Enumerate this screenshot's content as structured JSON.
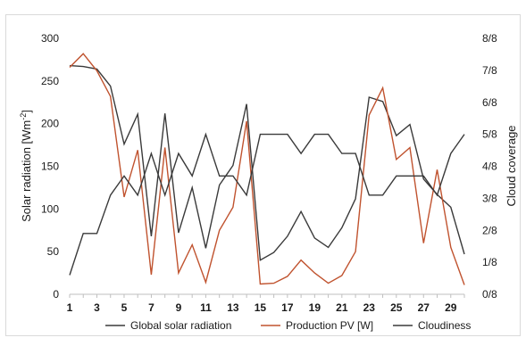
{
  "chart_data": {
    "type": "line",
    "x": [
      1,
      2,
      3,
      4,
      5,
      6,
      7,
      8,
      9,
      10,
      11,
      12,
      13,
      14,
      15,
      16,
      17,
      18,
      19,
      20,
      21,
      22,
      23,
      24,
      25,
      26,
      27,
      28,
      29,
      30
    ],
    "x_tick_labels": [
      "1",
      "3",
      "5",
      "7",
      "9",
      "11",
      "13",
      "15",
      "17",
      "19",
      "21",
      "23",
      "25",
      "27",
      "29"
    ],
    "ylabel_prefix": "Solar radiation [Wm",
    "ylabel_exp": "-2",
    "ylabel_suffix": "]",
    "y2label": "Cloud coverage",
    "ylim": [
      0,
      300
    ],
    "y_ticks": [
      "0",
      "50",
      "100",
      "150",
      "200",
      "250",
      "300"
    ],
    "y2lim": [
      0,
      8
    ],
    "y2_ticks": [
      "0/8",
      "1/8",
      "2/8",
      "3/8",
      "4/8",
      "5/8",
      "6/8",
      "7/8",
      "8/8"
    ],
    "grid": false,
    "legend_position": "bottom",
    "series": [
      {
        "name": "Global solar radiation",
        "axis": "left",
        "color": "#3a3a3a",
        "values": [
          268,
          267,
          264,
          244,
          176,
          211,
          68,
          212,
          72,
          125,
          54,
          128,
          151,
          223,
          40,
          49,
          68,
          97,
          66,
          55,
          78,
          112,
          231,
          226,
          186,
          199,
          135,
          117,
          102,
          47
        ]
      },
      {
        "name": "Production PV [W]",
        "axis": "left",
        "color": "#c0532f",
        "values": [
          266,
          282,
          262,
          232,
          114,
          169,
          23,
          172,
          25,
          58,
          14,
          75,
          102,
          203,
          12,
          13,
          21,
          40,
          25,
          13,
          22,
          50,
          210,
          242,
          158,
          172,
          60,
          146,
          55,
          11
        ]
      },
      {
        "name": "Cloudiness",
        "axis": "right",
        "color": "#3a3a3a",
        "values": [
          0.6,
          1.9,
          1.9,
          3.1,
          3.7,
          3.1,
          4.4,
          3.1,
          4.4,
          3.7,
          5.0,
          3.7,
          3.7,
          3.1,
          5.0,
          5.0,
          5.0,
          4.4,
          5.0,
          5.0,
          4.4,
          4.4,
          3.1,
          3.1,
          3.7,
          3.7,
          3.7,
          3.1,
          4.4,
          5.0
        ]
      }
    ]
  }
}
